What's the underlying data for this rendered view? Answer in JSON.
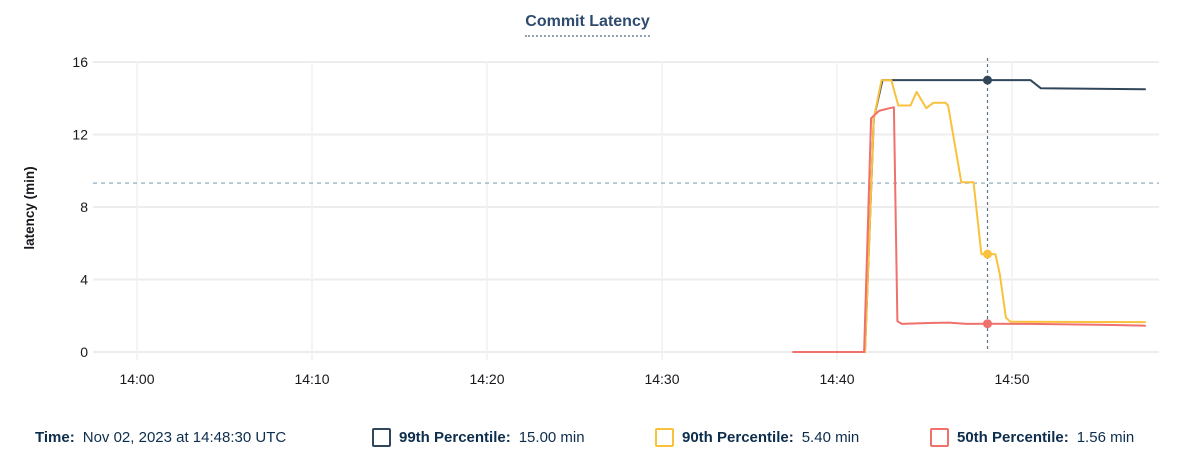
{
  "header": {
    "title": "Commit Latency"
  },
  "footer": {
    "time_label": "Time:",
    "time_value": "Nov 02, 2023 at 14:48:30 UTC",
    "legend": [
      {
        "label": "99th Percentile:",
        "value": "15.00 min"
      },
      {
        "label": "90th Percentile:",
        "value": "5.40 min"
      },
      {
        "label": "50th Percentile:",
        "value": "1.56 min"
      }
    ]
  },
  "chart_data": {
    "type": "line",
    "title": "Commit Latency",
    "xlabel": "",
    "ylabel": "latency (min)",
    "x_axis": {
      "tick_minutes_after_1400": [
        0,
        10,
        20,
        30,
        40,
        50
      ],
      "tick_labels": [
        "14:00",
        "14:10",
        "14:20",
        "14:30",
        "14:40",
        "14:50"
      ],
      "visible_range_minutes_after_1400": [
        -2.4,
        58.4
      ]
    },
    "y_axis": {
      "ticks": [
        0,
        4,
        8,
        12,
        16
      ],
      "range": [
        0,
        16
      ]
    },
    "grid": true,
    "threshold_line": {
      "value": 9.32,
      "style": "dashed",
      "color": "#A4BBC9"
    },
    "cursor": {
      "minutes_after_1400": 48.6,
      "time_label": "Nov 02, 2023 at 14:48:30 UTC",
      "color": "#5D7689"
    },
    "series": [
      {
        "name": "99th Percentile",
        "color": "#32465B",
        "cursor_value": 15.0,
        "points": [
          [
            37.5,
            0
          ],
          [
            41.6,
            0
          ],
          [
            42.1,
            12.9
          ],
          [
            42.6,
            15
          ],
          [
            51.05,
            15
          ],
          [
            51.65,
            14.55
          ],
          [
            57.6,
            14.5
          ]
        ]
      },
      {
        "name": "90th Percentile",
        "color": "#F9C13C",
        "cursor_value": 5.4,
        "points": [
          [
            37.5,
            0
          ],
          [
            41.6,
            0
          ],
          [
            42.1,
            12.9
          ],
          [
            42.55,
            15
          ],
          [
            43.1,
            15
          ],
          [
            43.5,
            13.6
          ],
          [
            44.2,
            13.6
          ],
          [
            44.55,
            14.35
          ],
          [
            45.1,
            13.45
          ],
          [
            45.5,
            13.75
          ],
          [
            46.2,
            13.75
          ],
          [
            46.35,
            13.6
          ],
          [
            47.1,
            9.37
          ],
          [
            47.8,
            9.37
          ],
          [
            48.25,
            5.4
          ],
          [
            49.05,
            5.4
          ],
          [
            49.3,
            4.3
          ],
          [
            49.65,
            1.9
          ],
          [
            49.9,
            1.67
          ],
          [
            57.6,
            1.65
          ]
        ]
      },
      {
        "name": "50th Percentile",
        "color": "#F0716C",
        "cursor_value": 1.56,
        "points": [
          [
            37.5,
            0
          ],
          [
            41.55,
            0
          ],
          [
            41.95,
            12.9
          ],
          [
            42.4,
            13.3
          ],
          [
            43.0,
            13.45
          ],
          [
            43.25,
            13.5
          ],
          [
            43.45,
            1.7
          ],
          [
            43.7,
            1.55
          ],
          [
            45.2,
            1.6
          ],
          [
            46.4,
            1.62
          ],
          [
            47.4,
            1.55
          ],
          [
            48.6,
            1.56
          ],
          [
            51.0,
            1.55
          ],
          [
            55.0,
            1.5
          ],
          [
            57.6,
            1.45
          ]
        ]
      }
    ]
  }
}
